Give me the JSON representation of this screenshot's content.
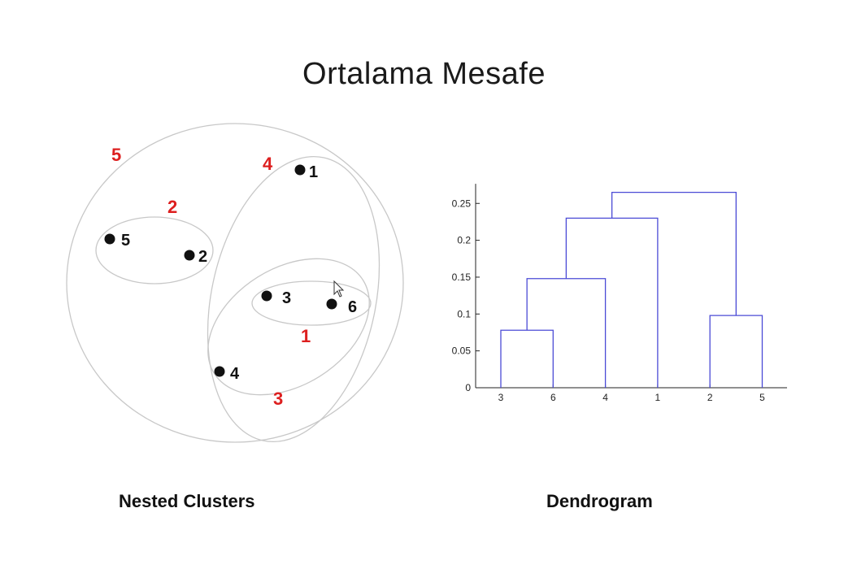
{
  "title": "Ortalama Mesafe",
  "captions": {
    "left": "Nested Clusters",
    "right": "Dendrogram"
  },
  "nested_clusters": {
    "points": [
      {
        "id": "1",
        "label": "1"
      },
      {
        "id": "2",
        "label": "2"
      },
      {
        "id": "3",
        "label": "3"
      },
      {
        "id": "4",
        "label": "4"
      },
      {
        "id": "5",
        "label": "5"
      },
      {
        "id": "6",
        "label": "6"
      }
    ],
    "clusters": [
      {
        "id": "1",
        "label": "1",
        "members": [
          "3",
          "6"
        ]
      },
      {
        "id": "2",
        "label": "2",
        "members": [
          "2",
          "5"
        ]
      },
      {
        "id": "3",
        "label": "3",
        "members": [
          "3",
          "6",
          "4"
        ]
      },
      {
        "id": "4",
        "label": "4",
        "members": [
          "3",
          "6",
          "4",
          "1"
        ]
      },
      {
        "id": "5",
        "label": "5",
        "members": [
          "1",
          "2",
          "3",
          "4",
          "5",
          "6"
        ]
      }
    ],
    "colors": {
      "cluster_label": "#dd1f1f",
      "ellipse": "#c8c8c8",
      "point": "#111111"
    }
  },
  "chart_data": {
    "type": "dendrogram",
    "leaves": [
      "3",
      "6",
      "4",
      "1",
      "2",
      "5"
    ],
    "ylim": [
      0,
      0.27
    ],
    "yticks": [
      0,
      0.05,
      0.1,
      0.15,
      0.2,
      0.25
    ],
    "ytick_labels": [
      "0",
      "0.05",
      "0.1",
      "0.15",
      "0.2",
      "0.25"
    ],
    "merges": [
      {
        "left": "3",
        "right": "6",
        "height": 0.078
      },
      {
        "left": "3,6",
        "right": "4",
        "height": 0.148
      },
      {
        "left": "3,6,4",
        "right": "1",
        "height": 0.23
      },
      {
        "left": "2",
        "right": "5",
        "height": 0.098
      },
      {
        "left": "3,6,4,1",
        "right": "2,5",
        "height": 0.265
      }
    ],
    "color": "#4b4bd6"
  }
}
